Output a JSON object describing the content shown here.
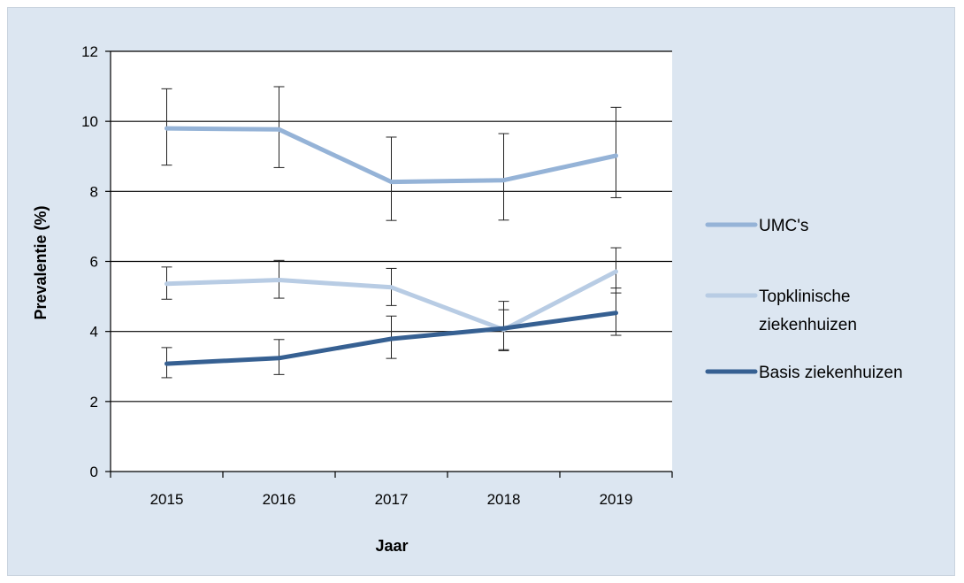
{
  "chart_data": {
    "type": "line",
    "title": "",
    "xlabel": "Jaar",
    "ylabel": "Prevalentie (%)",
    "categories": [
      "2015",
      "2016",
      "2017",
      "2018",
      "2019"
    ],
    "ylim": [
      0,
      12
    ],
    "yticks": [
      0,
      2,
      4,
      6,
      8,
      10,
      12
    ],
    "grid": "horizontal",
    "legend_position": "right",
    "series": [
      {
        "name": "UMC's",
        "legend_lines": [
          "UMC's"
        ],
        "color": "#95b3d7",
        "values": [
          9.8,
          9.77,
          8.27,
          8.32,
          9.02
        ],
        "error_low": [
          8.75,
          8.68,
          7.17,
          7.18,
          7.82
        ],
        "error_high": [
          10.93,
          10.99,
          9.55,
          9.65,
          10.4
        ]
      },
      {
        "name": "Topklinische ziekenhuizen",
        "legend_lines": [
          "Topklinische",
          "ziekenhuizen"
        ],
        "color": "#b8cce4",
        "values": [
          5.36,
          5.47,
          5.26,
          4.05,
          5.71
        ],
        "error_low": [
          4.92,
          4.95,
          4.74,
          3.45,
          5.1
        ],
        "error_high": [
          5.84,
          6.03,
          5.8,
          4.86,
          6.39
        ]
      },
      {
        "name": "Basis ziekenhuizen",
        "legend_lines": [
          "Basis ziekenhuizen"
        ],
        "color": "#366092",
        "values": [
          3.08,
          3.24,
          3.79,
          4.09,
          4.53
        ],
        "error_low": [
          2.68,
          2.77,
          3.23,
          3.48,
          3.89
        ],
        "error_high": [
          3.54,
          3.77,
          4.44,
          4.62,
          5.24
        ]
      }
    ]
  }
}
